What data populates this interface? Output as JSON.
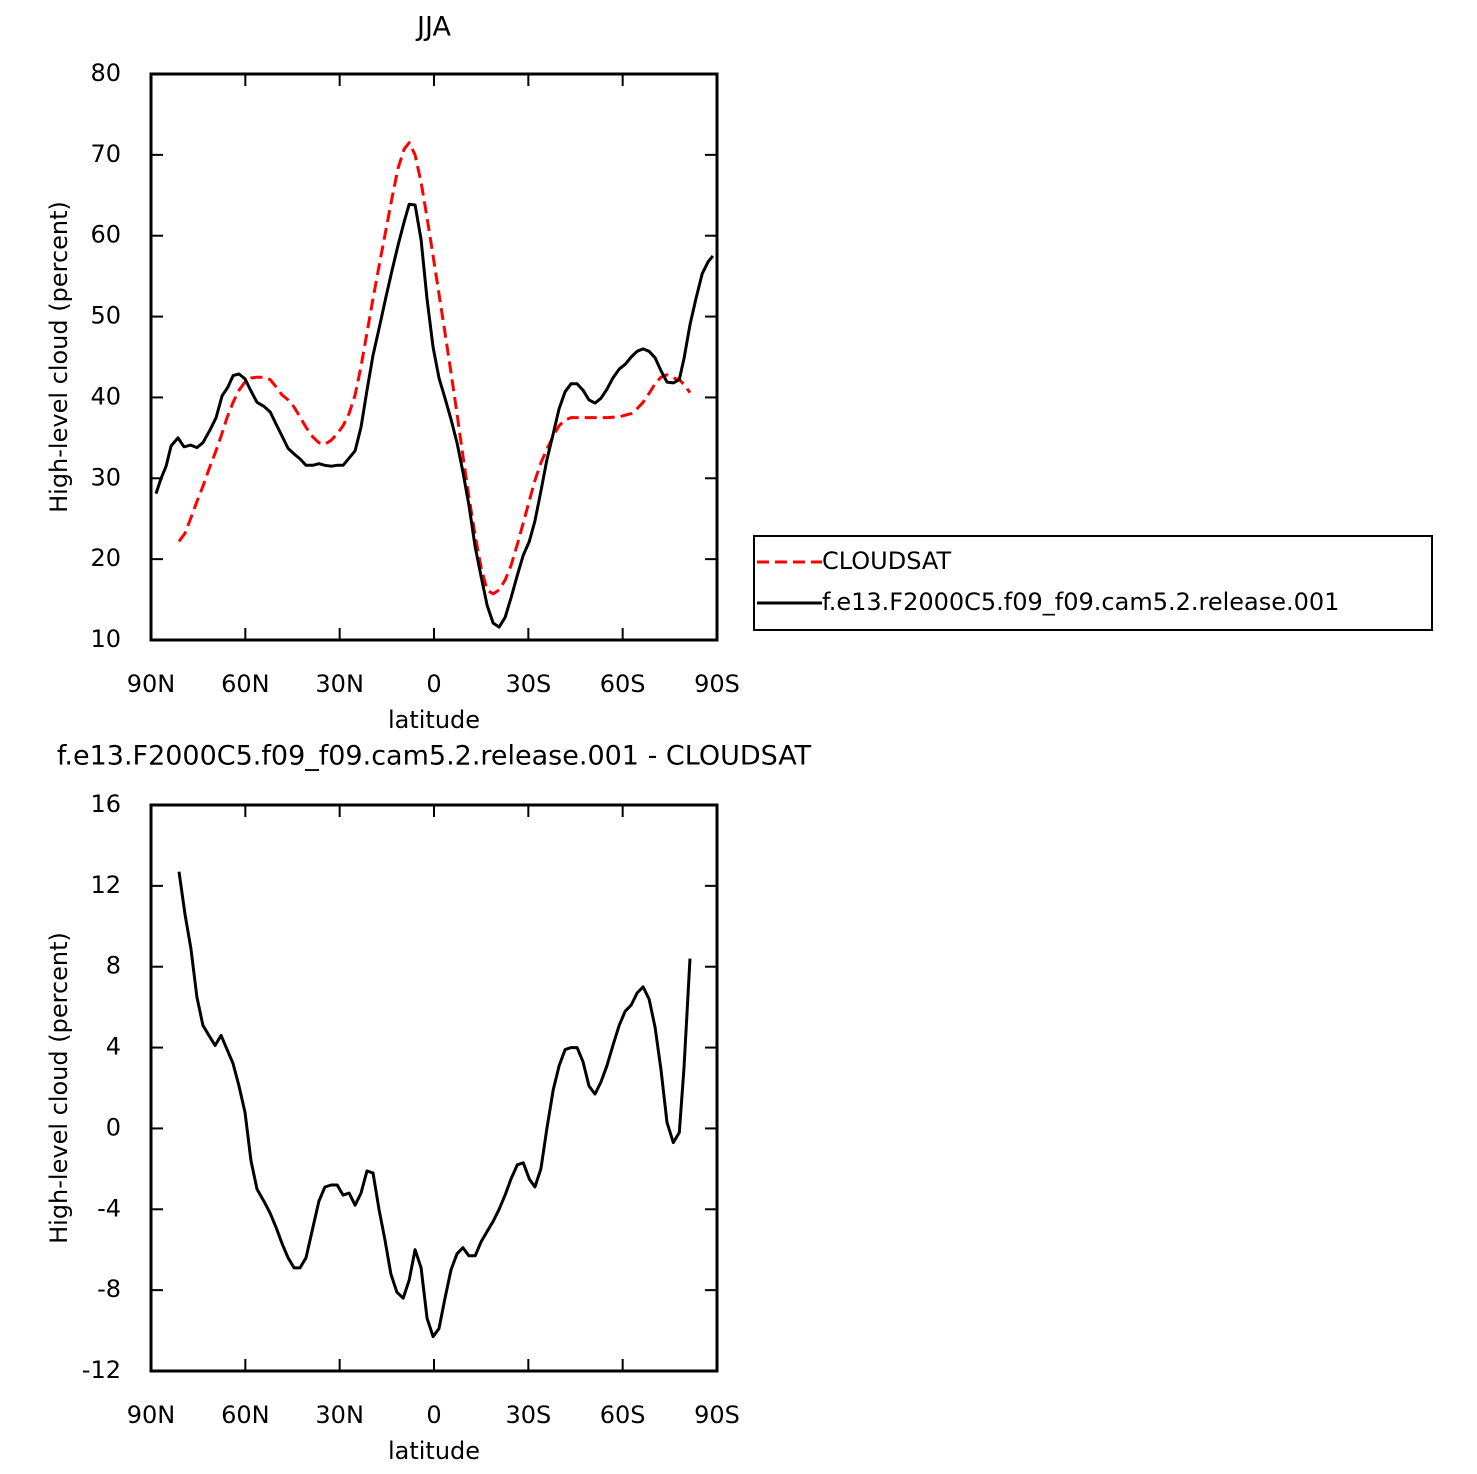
{
  "chart_data": [
    {
      "type": "line",
      "title": "JJA",
      "xlabel": "latitude",
      "ylabel": "High-level cloud (percent)",
      "xlim": [
        90,
        -90
      ],
      "xticks": [
        {
          "value": 90,
          "label": "90N"
        },
        {
          "value": 60,
          "label": "60N"
        },
        {
          "value": 30,
          "label": "30N"
        },
        0,
        {
          "value": -30,
          "label": "30S"
        },
        {
          "value": -60,
          "label": "60S"
        },
        {
          "value": -90,
          "label": "90S"
        }
      ],
      "ylim": [
        10,
        80
      ],
      "yticks": [
        10,
        20,
        30,
        40,
        50,
        60,
        70,
        80
      ],
      "legend": "right",
      "series": [
        {
          "name": "CLOUDSAT",
          "color": "#ff0000",
          "dash": true,
          "x": [
            81.1,
            79.2,
            77.3,
            75.4,
            73.5,
            71.6,
            69.6,
            67.7,
            65.8,
            63.9,
            62.0,
            60.1,
            58.2,
            56.3,
            54.1,
            52.1,
            50.2,
            48.3,
            46.4,
            44.5,
            42.6,
            40.7,
            38.5,
            36.6,
            34.7,
            32.7,
            30.8,
            28.9,
            27.0,
            25.1,
            23.2,
            21.3,
            19.4,
            17.2,
            15.3,
            13.3,
            11.4,
            9.5,
            7.9,
            6.0,
            4.1,
            2.2,
            0.3,
            -1.6,
            -3.5,
            -5.4,
            -7.3,
            -9.2,
            -11.1,
            -13.1,
            -15.0,
            -16.9,
            -18.8,
            -20.7,
            -22.6,
            -24.5,
            -26.5,
            -28.4,
            -30.3,
            -32.1,
            -34.0,
            -35.9,
            -37.9,
            -39.8,
            -41.7,
            -43.6,
            -47.4,
            -51.2,
            -55.0,
            -58.9,
            -62.7,
            -64.6,
            -66.5,
            -68.4,
            -70.3,
            -72.2,
            -74.1,
            -76.1,
            -78.0,
            -79.5,
            -81.4
          ],
          "values": [
            22.2,
            23.2,
            25.1,
            27.1,
            29.0,
            31.1,
            33.1,
            35.2,
            37.5,
            39.4,
            40.9,
            41.9,
            42.4,
            42.5,
            42.5,
            42.2,
            41.3,
            40.3,
            39.7,
            38.8,
            37.6,
            36.3,
            35.1,
            34.4,
            34.2,
            34.7,
            35.5,
            36.5,
            38.0,
            40.3,
            43.8,
            48.0,
            52.2,
            56.8,
            60.7,
            64.8,
            68.4,
            70.7,
            71.5,
            70.0,
            66.6,
            62.2,
            57.5,
            52.8,
            48.0,
            43.1,
            38.0,
            32.8,
            27.7,
            22.9,
            18.9,
            16.2,
            15.7,
            16.2,
            17.4,
            19.2,
            21.8,
            24.5,
            27.2,
            29.7,
            31.9,
            33.6,
            35.2,
            36.5,
            37.2,
            37.5,
            37.5,
            37.5,
            37.5,
            37.6,
            38.0,
            38.6,
            39.4,
            40.5,
            41.7,
            42.5,
            42.8,
            42.4,
            42.2,
            41.6,
            40.6
          ]
        },
        {
          "name": "f.e13.F2000C5.f09_f09.cam5.2.release.001",
          "color": "#000000",
          "dash": false,
          "x": [
            88.4,
            86.8,
            85.2,
            83.6,
            81.4,
            79.5,
            77.3,
            75.4,
            73.5,
            71.2,
            69.3,
            67.4,
            65.5,
            63.9,
            62.0,
            60.1,
            58.2,
            56.3,
            54.1,
            52.1,
            50.2,
            48.3,
            46.4,
            44.5,
            42.6,
            40.7,
            38.5,
            36.6,
            34.7,
            32.7,
            30.8,
            28.9,
            27.0,
            25.1,
            23.2,
            21.3,
            19.4,
            17.2,
            15.3,
            13.3,
            11.4,
            9.5,
            7.9,
            6.0,
            4.1,
            2.2,
            0.3,
            -1.6,
            -3.5,
            -5.4,
            -7.3,
            -9.2,
            -11.1,
            -13.1,
            -15.0,
            -16.9,
            -18.8,
            -20.7,
            -22.6,
            -24.5,
            -26.5,
            -28.4,
            -30.3,
            -32.1,
            -34.0,
            -35.9,
            -37.9,
            -39.8,
            -41.7,
            -43.6,
            -45.5,
            -47.4,
            -49.3,
            -51.2,
            -53.1,
            -55.0,
            -56.9,
            -58.9,
            -60.8,
            -62.7,
            -64.6,
            -66.5,
            -68.4,
            -70.3,
            -72.2,
            -74.1,
            -76.1,
            -78.0,
            -79.5,
            -81.4,
            -83.3,
            -85.3,
            -87.2,
            -88.7
          ],
          "values": [
            28.1,
            30.0,
            31.5,
            34.0,
            35.0,
            33.9,
            34.1,
            33.8,
            34.4,
            36.0,
            37.5,
            40.2,
            41.3,
            42.7,
            42.9,
            42.3,
            40.8,
            39.4,
            38.9,
            38.2,
            36.7,
            35.2,
            33.7,
            33.0,
            32.4,
            31.6,
            31.6,
            31.8,
            31.6,
            31.5,
            31.6,
            31.6,
            32.5,
            33.4,
            36.3,
            40.9,
            45.2,
            49.0,
            52.4,
            55.8,
            58.9,
            61.7,
            63.9,
            63.8,
            59.5,
            52.1,
            46.2,
            42.4,
            39.9,
            37.3,
            34.4,
            30.8,
            26.7,
            21.5,
            17.8,
            14.3,
            12.1,
            11.6,
            12.8,
            15.2,
            18.0,
            20.5,
            22.2,
            24.7,
            28.4,
            32.3,
            35.5,
            38.6,
            40.7,
            41.7,
            41.7,
            40.9,
            39.7,
            39.3,
            39.9,
            41.0,
            42.4,
            43.5,
            44.1,
            45.0,
            45.7,
            46.0,
            45.7,
            44.9,
            43.3,
            41.9,
            41.8,
            42.2,
            44.8,
            49.0,
            52.2,
            55.3,
            56.8,
            57.5
          ]
        }
      ]
    },
    {
      "type": "line",
      "title": "f.e13.F2000C5.f09_f09.cam5.2.release.001 - CLOUDSAT",
      "xlabel": "latitude",
      "ylabel": "High-level cloud (percent)",
      "xlim": [
        90,
        -90
      ],
      "xticks": [
        {
          "value": 90,
          "label": "90N"
        },
        {
          "value": 60,
          "label": "60N"
        },
        {
          "value": 30,
          "label": "30N"
        },
        0,
        {
          "value": -30,
          "label": "30S"
        },
        {
          "value": -60,
          "label": "60S"
        },
        {
          "value": -90,
          "label": "90S"
        }
      ],
      "ylim": [
        -12,
        16
      ],
      "yticks": [
        -12,
        -8,
        -4,
        0,
        4,
        8,
        12,
        16
      ],
      "series": [
        {
          "color": "#000000",
          "dash": false,
          "x": [
            81.1,
            79.2,
            77.3,
            75.4,
            73.5,
            71.6,
            69.6,
            67.7,
            65.8,
            63.9,
            62.0,
            60.1,
            58.2,
            56.3,
            54.1,
            52.1,
            50.2,
            48.3,
            46.4,
            44.5,
            42.6,
            40.7,
            38.5,
            36.6,
            34.7,
            32.7,
            30.8,
            28.9,
            27.0,
            25.1,
            23.2,
            21.3,
            19.4,
            17.5,
            15.6,
            13.7,
            11.8,
            9.8,
            7.9,
            6.0,
            4.1,
            2.2,
            0.3,
            -1.6,
            -3.5,
            -5.4,
            -7.3,
            -9.2,
            -11.1,
            -13.1,
            -15.0,
            -16.9,
            -18.8,
            -20.7,
            -22.6,
            -24.5,
            -26.5,
            -28.4,
            -30.3,
            -32.1,
            -34.0,
            -35.9,
            -37.9,
            -39.8,
            -41.7,
            -43.6,
            -45.5,
            -47.4,
            -49.3,
            -51.2,
            -53.1,
            -55.0,
            -56.9,
            -58.9,
            -60.8,
            -62.7,
            -64.6,
            -66.5,
            -68.4,
            -70.3,
            -72.2,
            -74.1,
            -76.1,
            -78.0,
            -79.5,
            -81.4
          ],
          "values": [
            12.7,
            10.6,
            8.9,
            6.5,
            5.1,
            4.6,
            4.1,
            4.6,
            3.9,
            3.2,
            2.1,
            0.8,
            -1.6,
            -3.0,
            -3.6,
            -4.2,
            -4.9,
            -5.7,
            -6.4,
            -6.9,
            -6.9,
            -6.4,
            -4.9,
            -3.6,
            -2.9,
            -2.8,
            -2.8,
            -3.3,
            -3.2,
            -3.8,
            -3.2,
            -2.1,
            -2.2,
            -4.0,
            -5.5,
            -7.2,
            -8.1,
            -8.4,
            -7.5,
            -6.0,
            -6.9,
            -9.4,
            -10.3,
            -9.9,
            -8.4,
            -7.0,
            -6.2,
            -5.9,
            -6.3,
            -6.3,
            -5.6,
            -5.1,
            -4.6,
            -4.0,
            -3.3,
            -2.5,
            -1.8,
            -1.7,
            -2.5,
            -2.9,
            -2.0,
            0.0,
            1.9,
            3.1,
            3.9,
            4.0,
            4.0,
            3.3,
            2.1,
            1.7,
            2.3,
            3.1,
            4.1,
            5.1,
            5.8,
            6.1,
            6.7,
            7.0,
            6.4,
            5.0,
            2.9,
            0.3,
            -0.7,
            -0.2,
            3.0,
            8.4
          ]
        }
      ]
    }
  ]
}
